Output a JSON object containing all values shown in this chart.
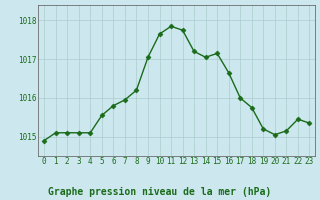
{
  "x": [
    0,
    1,
    2,
    3,
    4,
    5,
    6,
    7,
    8,
    9,
    10,
    11,
    12,
    13,
    14,
    15,
    16,
    17,
    18,
    19,
    20,
    21,
    22,
    23
  ],
  "y": [
    1014.9,
    1015.1,
    1015.1,
    1015.1,
    1015.1,
    1015.55,
    1015.8,
    1015.95,
    1016.2,
    1017.05,
    1017.65,
    1017.85,
    1017.75,
    1017.2,
    1017.05,
    1017.15,
    1016.65,
    1016.0,
    1015.75,
    1015.2,
    1015.05,
    1015.15,
    1015.45,
    1015.35
  ],
  "line_color": "#1a6b1a",
  "marker": "D",
  "markersize": 2.5,
  "linewidth": 1.0,
  "bg_color": "#cce8ee",
  "grid_color": "#aacccc",
  "xlabel": "Graphe pression niveau de la mer (hPa)",
  "xlabel_color": "#1a6b1a",
  "xlabel_fontsize": 7,
  "ytick_labels": [
    "1015",
    "1016",
    "1017",
    "1018"
  ],
  "ytick_values": [
    1015,
    1016,
    1017,
    1018
  ],
  "ylim": [
    1014.5,
    1018.4
  ],
  "xlim": [
    -0.5,
    23.5
  ],
  "xtick_labels": [
    "0",
    "1",
    "2",
    "3",
    "4",
    "5",
    "6",
    "7",
    "8",
    "9",
    "10",
    "11",
    "12",
    "13",
    "14",
    "15",
    "16",
    "17",
    "18",
    "19",
    "20",
    "21",
    "22",
    "23"
  ],
  "tick_fontsize": 5.5,
  "spine_color": "#555555",
  "bottom_bar_color": "#1a6b1a",
  "bottom_bar_height": 0.12
}
